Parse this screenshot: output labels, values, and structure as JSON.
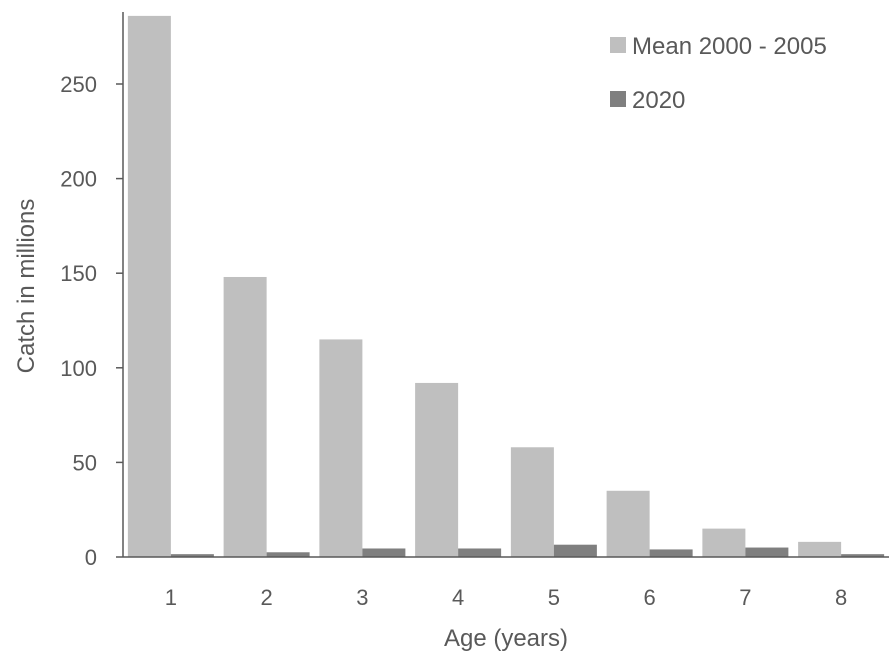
{
  "chart_data": {
    "type": "bar",
    "title": "",
    "xlabel": "Age (years)",
    "ylabel": "Catch in millions",
    "categories": [
      "1",
      "2",
      "3",
      "4",
      "5",
      "6",
      "7",
      "8"
    ],
    "series": [
      {
        "name": "Mean 2000 - 2005",
        "color": "#bfbfbf",
        "values": [
          286,
          148,
          115,
          92,
          58,
          35,
          15,
          8
        ]
      },
      {
        "name": "2020",
        "color": "#7f7f7f",
        "values": [
          1.5,
          2.5,
          4.5,
          4.5,
          6.5,
          4,
          5,
          1.5
        ]
      }
    ],
    "ylim": [
      0,
      290
    ],
    "yticks": [
      0,
      50,
      100,
      150,
      200,
      250
    ],
    "grid": false,
    "legend_position": "top-right"
  }
}
